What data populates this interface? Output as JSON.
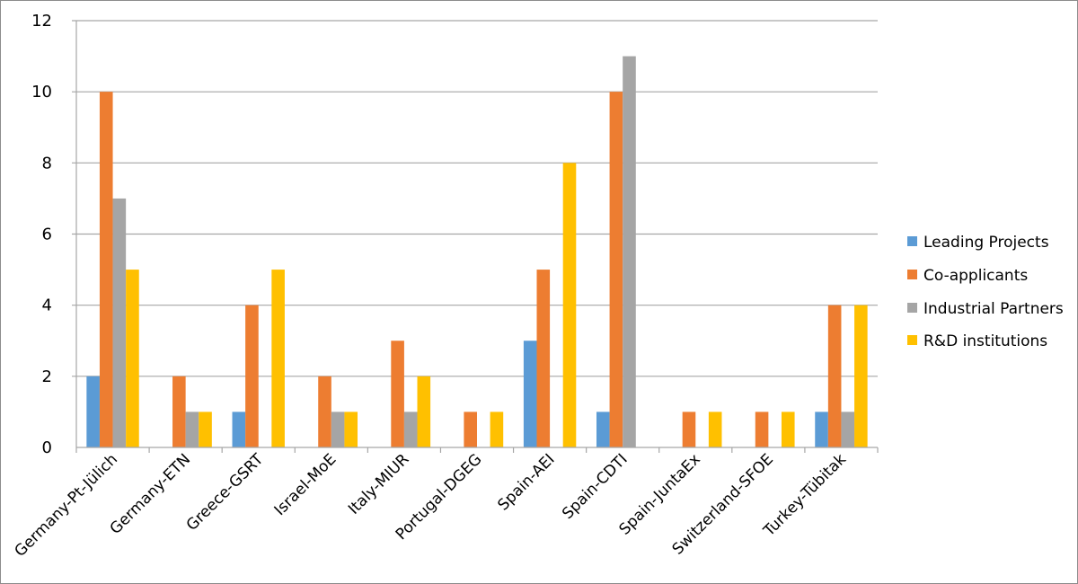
{
  "chart_data": {
    "type": "bar",
    "title": "",
    "xlabel": "",
    "ylabel": "",
    "ylim": [
      0,
      12
    ],
    "yticks": [
      0,
      2,
      4,
      6,
      8,
      10,
      12
    ],
    "grid": true,
    "legend_position": "right",
    "categories": [
      "Germany-Pt-Jülich",
      "Germany-ETN",
      "Greece-GSRT",
      "Israel-MoE",
      "Italy-MIUR",
      "Portugal-DGEG",
      "Spain-AEI",
      "Spain-CDTI",
      "Spain-JuntaEx",
      "Switzerland-SFOE",
      "Turkey-Tübitak"
    ],
    "series": [
      {
        "name": "Leading Projects",
        "color": "#5b9bd5",
        "values": [
          2,
          0,
          1,
          0,
          0,
          0,
          3,
          1,
          0,
          0,
          1
        ]
      },
      {
        "name": "Co-applicants",
        "color": "#ed7d31",
        "values": [
          10,
          2,
          4,
          2,
          3,
          1,
          5,
          10,
          1,
          1,
          4
        ]
      },
      {
        "name": "Industrial Partners",
        "color": "#a5a5a5",
        "values": [
          7,
          1,
          0,
          1,
          1,
          0,
          0,
          11,
          0,
          0,
          1
        ]
      },
      {
        "name": "R&D institutions",
        "color": "#ffc000",
        "values": [
          5,
          1,
          5,
          1,
          2,
          1,
          8,
          0,
          1,
          1,
          4
        ]
      }
    ]
  },
  "legend": {
    "items": [
      {
        "label": "Leading Projects",
        "color": "#5b9bd5"
      },
      {
        "label": "Co-applicants",
        "color": "#ed7d31"
      },
      {
        "label": "Industrial Partners",
        "color": "#a5a5a5"
      },
      {
        "label": "R&D institutions",
        "color": "#ffc000"
      }
    ]
  },
  "colors": {
    "gridline": "#a6a6a6",
    "axis": "#a6a6a6",
    "border": "#8c8c8c"
  }
}
